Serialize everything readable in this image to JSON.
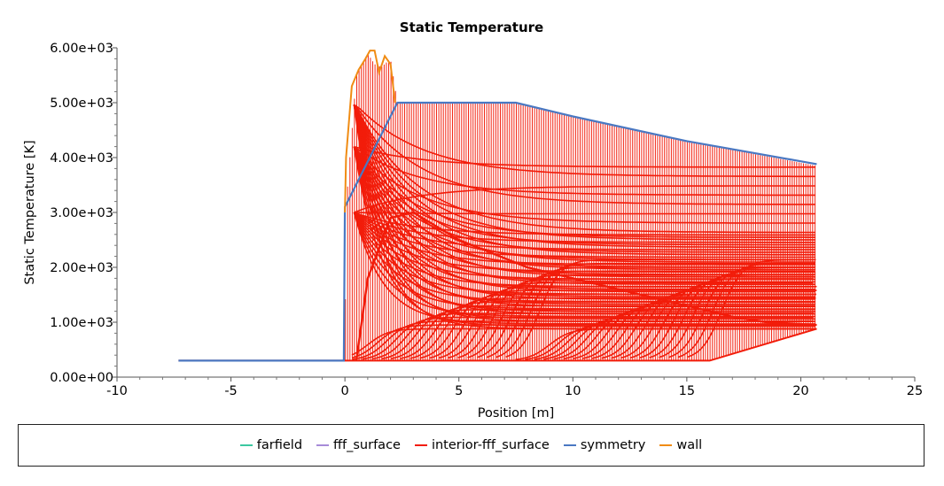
{
  "chart_data": {
    "type": "line",
    "title": "Static Temperature",
    "xlabel": "Position [m]",
    "ylabel": "Static Temperature [K]",
    "xlim": [
      -10,
      25
    ],
    "ylim": [
      0,
      6000
    ],
    "x_ticks": [
      -10,
      -5,
      0,
      5,
      10,
      15,
      20,
      25
    ],
    "x_tick_labels": [
      "-10",
      "-5",
      "0",
      "5",
      "10",
      "15",
      "20",
      "25"
    ],
    "y_ticks": [
      0,
      1000,
      2000,
      3000,
      4000,
      5000,
      6000
    ],
    "y_tick_labels": [
      "0.00e+00",
      "1.00e+03",
      "2.00e+03",
      "3.00e+03",
      "4.00e+03",
      "5.00e+03",
      "6.00e+03"
    ],
    "grid": false,
    "legend_position": "bottom",
    "series": [
      {
        "name": "farfield",
        "color": "#3cc8a0",
        "x": [],
        "y": []
      },
      {
        "name": "fff_surface",
        "color": "#a78bd8",
        "x": [],
        "y": []
      },
      {
        "name": "interior-fff_surface",
        "color": "#f21c0a",
        "x": [
          -7.3,
          0,
          0.05,
          0.5,
          1.0,
          1.3,
          1.6,
          2.0,
          2.3,
          3,
          5,
          7.5,
          10,
          15,
          20.7
        ],
        "y": [
          300,
          300,
          3100,
          5500,
          5900,
          5700,
          5650,
          5800,
          5000,
          5000,
          5000,
          5000,
          4750,
          4300,
          3850
        ],
        "x_bottom_envelope": [
          -7.3,
          0,
          5,
          10,
          16,
          20.7
        ],
        "y_bottom_envelope": [
          300,
          300,
          300,
          300,
          300,
          880
        ],
        "x_lower_curve": [
          0.5,
          1,
          2,
          3,
          5,
          8,
          10,
          13,
          16,
          17,
          18.5,
          20.7
        ],
        "y_lower_curve": [
          300,
          1800,
          2900,
          3000,
          2500,
          2000,
          1800,
          1500,
          1200,
          1100,
          1000,
          950
        ]
      },
      {
        "name": "symmetry",
        "color": "#4a78c2",
        "x": [
          -7.3,
          -0.05,
          0,
          2.3,
          3,
          5,
          7.5,
          10,
          15,
          20.7
        ],
        "y": [
          300,
          300,
          3100,
          5000,
          5000,
          5000,
          5000,
          4750,
          4300,
          3880
        ]
      },
      {
        "name": "wall",
        "color": "#f08c14",
        "x": [
          0,
          0.05,
          0.3,
          0.6,
          0.9,
          1.1,
          1.3,
          1.5,
          1.75,
          2.0,
          2.2
        ],
        "y": [
          3000,
          4000,
          5300,
          5600,
          5800,
          5950,
          5950,
          5550,
          5850,
          5700,
          5000
        ]
      }
    ]
  }
}
